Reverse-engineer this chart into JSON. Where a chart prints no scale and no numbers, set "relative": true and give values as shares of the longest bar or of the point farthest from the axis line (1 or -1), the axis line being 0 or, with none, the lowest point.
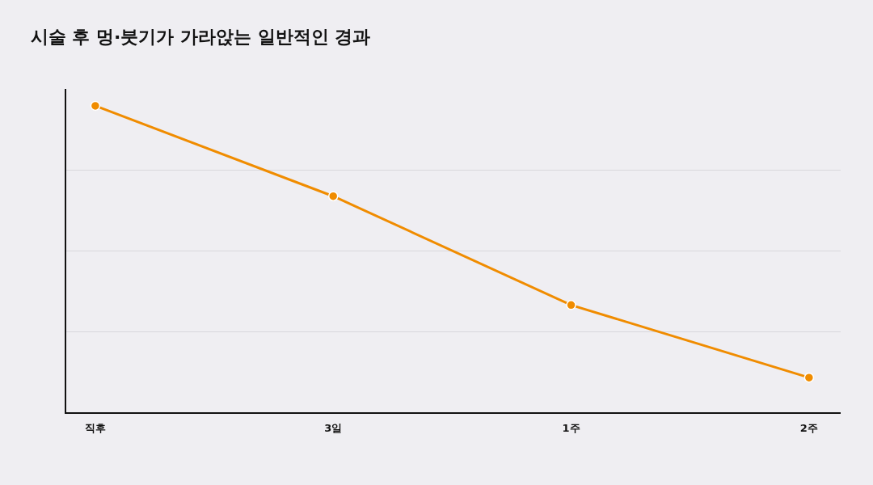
{
  "chart_data": {
    "type": "line",
    "title": "시술 후 멍·붓기가 가라앉는 일반적인 경과",
    "categories": [
      "직후",
      "3일",
      "1주",
      "2주"
    ],
    "series": [
      {
        "color": "#f08c00",
        "values": [
          1,
          0.705,
          0.35,
          0.113
        ]
      }
    ],
    "relative": true,
    "grid": "y",
    "marker": "circle",
    "line_style": "solid"
  }
}
